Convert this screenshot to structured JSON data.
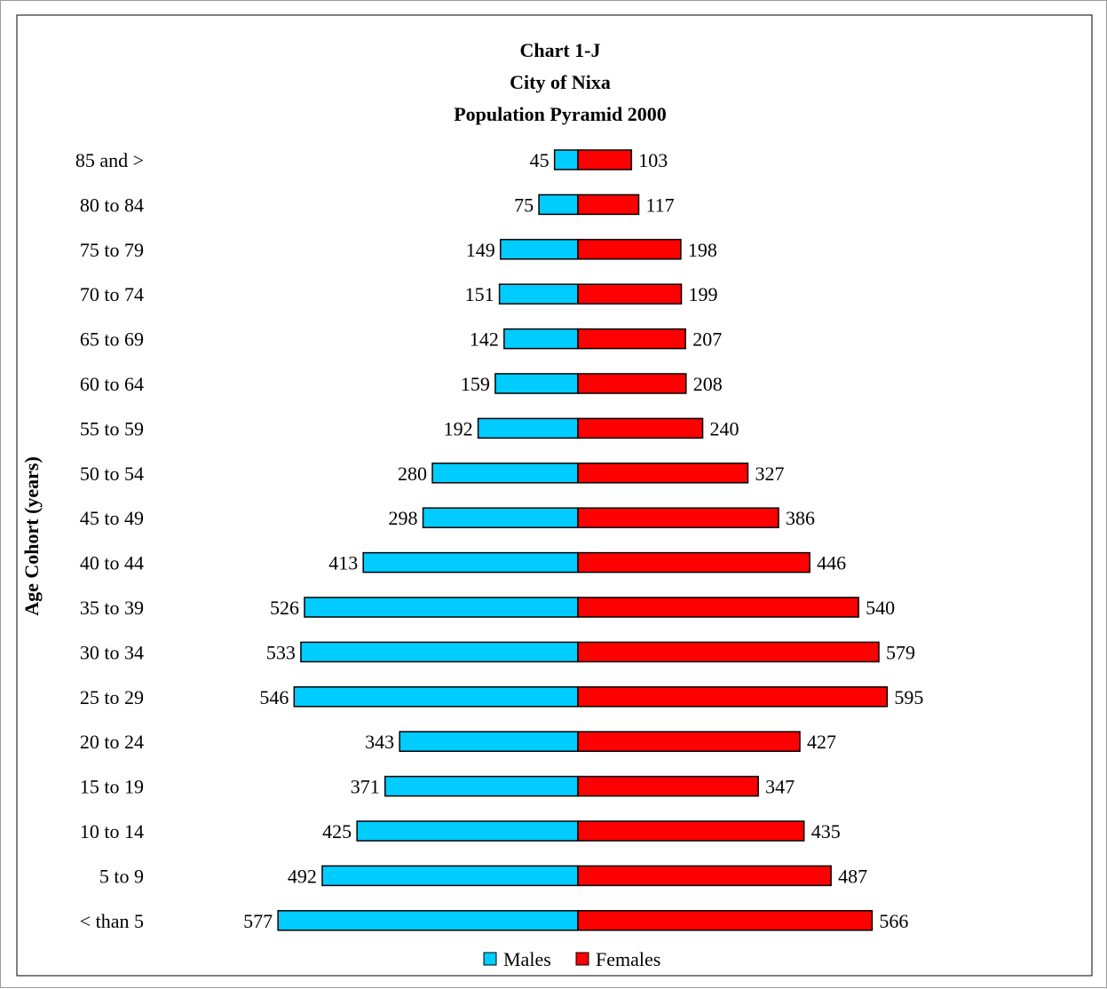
{
  "chart_data": {
    "type": "bar",
    "orientation": "horizontal",
    "title_lines": [
      "Chart 1-J",
      "City of Nixa",
      "Population Pyramid 2000"
    ],
    "ylabel": "Age Cohort (years)",
    "categories": [
      "85 and >",
      "80 to 84",
      "75 to 79",
      "70 to 74",
      "65 to 69",
      "60 to 64",
      "55 to 59",
      "50 to 54",
      "45 to 49",
      "40 to 44",
      "35 to 39",
      "30 to 34",
      "25 to 29",
      "20 to 24",
      "15 to 19",
      "10 to 14",
      "5 to 9",
      "< than 5"
    ],
    "series": [
      {
        "name": "Males",
        "color": "#00CCFF",
        "values": [
          45,
          75,
          149,
          151,
          142,
          159,
          192,
          280,
          298,
          413,
          526,
          533,
          546,
          343,
          371,
          425,
          492,
          577
        ]
      },
      {
        "name": "Females",
        "color": "#FF0000",
        "values": [
          103,
          117,
          198,
          199,
          207,
          208,
          240,
          327,
          386,
          446,
          540,
          579,
          595,
          427,
          347,
          435,
          487,
          566
        ]
      }
    ],
    "grid": false,
    "legend_position": "bottom"
  }
}
